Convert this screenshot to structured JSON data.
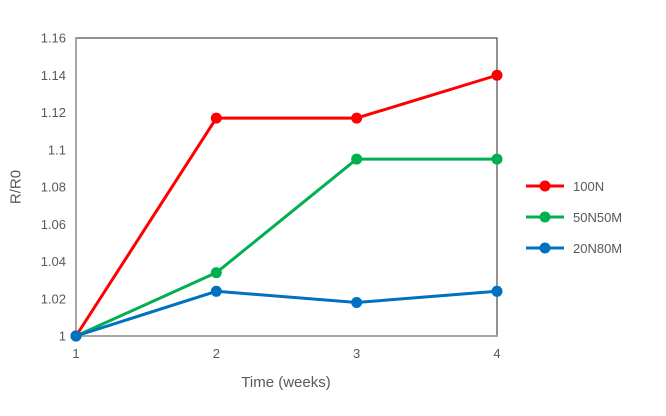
{
  "chart_data": {
    "type": "line",
    "x": [
      1,
      2,
      3,
      4
    ],
    "x_tick_labels": [
      "1",
      "2",
      "3",
      "4"
    ],
    "y_ticks": [
      1,
      1.02,
      1.04,
      1.06,
      1.08,
      1.1,
      1.12,
      1.14,
      1.16
    ],
    "y_tick_labels": [
      "1",
      "1.02",
      "1.04",
      "1.06",
      "1.08",
      "1.1",
      "1.12",
      "1.14",
      "1.16"
    ],
    "series": [
      {
        "name": "100N",
        "color": "#ff0000",
        "values": [
          1,
          1.117,
          1.117,
          1.14
        ]
      },
      {
        "name": "50N50M",
        "color": "#00b050",
        "values": [
          1,
          1.034,
          1.095,
          1.095
        ]
      },
      {
        "name": "20N80M",
        "color": "#0070c0",
        "values": [
          1,
          1.024,
          1.018,
          1.024
        ]
      }
    ],
    "title": "",
    "xlabel": "Time (weeks)",
    "ylabel": "R/R0",
    "xlim": [
      1,
      4
    ],
    "ylim": [
      1,
      1.16
    ],
    "grid": "off",
    "legend_position": "right",
    "marker": "circle",
    "colors": {
      "text": "#595959",
      "axis_line": "#a6a6a6",
      "plot_border": "#262626",
      "background": "#ffffff"
    }
  }
}
